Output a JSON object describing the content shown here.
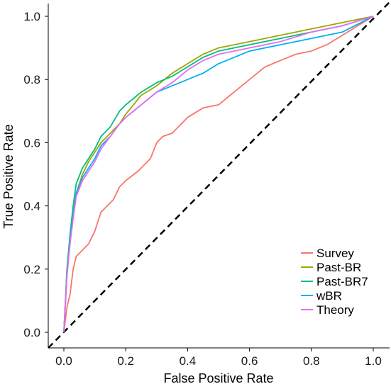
{
  "chart_data": {
    "type": "line",
    "xlabel": "False Positive Rate",
    "ylabel": "True Positive Rate",
    "xlim": [
      0,
      1
    ],
    "ylim": [
      0,
      1
    ],
    "x_ticks": [
      "0.0",
      "0.2",
      "0.4",
      "0.6",
      "0.8",
      "1.0"
    ],
    "y_ticks": [
      "0.0",
      "0.2",
      "0.4",
      "0.6",
      "0.8",
      "1.0"
    ],
    "grid": false,
    "legend_position": "bottom-right",
    "reference_line": {
      "style": "dashed",
      "color": "#000000",
      "from": [
        0,
        0
      ],
      "to": [
        1,
        1
      ]
    },
    "series": [
      {
        "name": "Survey",
        "color": "#F8766D",
        "points": [
          [
            0,
            0
          ],
          [
            0.01,
            0.08
          ],
          [
            0.02,
            0.12
          ],
          [
            0.03,
            0.2
          ],
          [
            0.04,
            0.24
          ],
          [
            0.06,
            0.26
          ],
          [
            0.08,
            0.28
          ],
          [
            0.1,
            0.32
          ],
          [
            0.12,
            0.38
          ],
          [
            0.14,
            0.4
          ],
          [
            0.16,
            0.42
          ],
          [
            0.18,
            0.46
          ],
          [
            0.2,
            0.48
          ],
          [
            0.24,
            0.51
          ],
          [
            0.28,
            0.55
          ],
          [
            0.3,
            0.6
          ],
          [
            0.32,
            0.62
          ],
          [
            0.35,
            0.63
          ],
          [
            0.38,
            0.66
          ],
          [
            0.4,
            0.68
          ],
          [
            0.45,
            0.71
          ],
          [
            0.5,
            0.72
          ],
          [
            0.55,
            0.76
          ],
          [
            0.6,
            0.8
          ],
          [
            0.65,
            0.84
          ],
          [
            0.7,
            0.86
          ],
          [
            0.75,
            0.88
          ],
          [
            0.8,
            0.89
          ],
          [
            0.85,
            0.91
          ],
          [
            0.9,
            0.94
          ],
          [
            0.95,
            0.97
          ],
          [
            1,
            1
          ]
        ]
      },
      {
        "name": "Past-BR",
        "color": "#A3A500",
        "points": [
          [
            0,
            0
          ],
          [
            0.01,
            0.2
          ],
          [
            0.02,
            0.3
          ],
          [
            0.03,
            0.38
          ],
          [
            0.04,
            0.44
          ],
          [
            0.06,
            0.5
          ],
          [
            0.08,
            0.54
          ],
          [
            0.1,
            0.57
          ],
          [
            0.12,
            0.6
          ],
          [
            0.15,
            0.63
          ],
          [
            0.18,
            0.66
          ],
          [
            0.2,
            0.69
          ],
          [
            0.25,
            0.75
          ],
          [
            0.3,
            0.78
          ],
          [
            0.35,
            0.82
          ],
          [
            0.4,
            0.85
          ],
          [
            0.45,
            0.88
          ],
          [
            0.5,
            0.9
          ],
          [
            0.6,
            0.92
          ],
          [
            0.7,
            0.94
          ],
          [
            0.8,
            0.96
          ],
          [
            0.9,
            0.98
          ],
          [
            1,
            1
          ]
        ]
      },
      {
        "name": "Past-BR7",
        "color": "#00BF7D",
        "points": [
          [
            0,
            0
          ],
          [
            0.01,
            0.2
          ],
          [
            0.02,
            0.31
          ],
          [
            0.03,
            0.4
          ],
          [
            0.04,
            0.47
          ],
          [
            0.06,
            0.52
          ],
          [
            0.08,
            0.55
          ],
          [
            0.1,
            0.58
          ],
          [
            0.12,
            0.62
          ],
          [
            0.15,
            0.65
          ],
          [
            0.18,
            0.7
          ],
          [
            0.2,
            0.72
          ],
          [
            0.25,
            0.76
          ],
          [
            0.3,
            0.79
          ],
          [
            0.35,
            0.81
          ],
          [
            0.4,
            0.84
          ],
          [
            0.45,
            0.87
          ],
          [
            0.5,
            0.89
          ],
          [
            0.6,
            0.91
          ],
          [
            0.7,
            0.93
          ],
          [
            0.8,
            0.95
          ],
          [
            0.9,
            0.97
          ],
          [
            1,
            1
          ]
        ]
      },
      {
        "name": "wBR",
        "color": "#00B0F6",
        "points": [
          [
            0,
            0
          ],
          [
            0.01,
            0.18
          ],
          [
            0.02,
            0.29
          ],
          [
            0.03,
            0.37
          ],
          [
            0.04,
            0.44
          ],
          [
            0.06,
            0.49
          ],
          [
            0.08,
            0.52
          ],
          [
            0.1,
            0.55
          ],
          [
            0.12,
            0.59
          ],
          [
            0.15,
            0.62
          ],
          [
            0.18,
            0.66
          ],
          [
            0.2,
            0.68
          ],
          [
            0.25,
            0.72
          ],
          [
            0.3,
            0.76
          ],
          [
            0.35,
            0.78
          ],
          [
            0.4,
            0.8
          ],
          [
            0.45,
            0.82
          ],
          [
            0.5,
            0.85
          ],
          [
            0.6,
            0.89
          ],
          [
            0.7,
            0.91
          ],
          [
            0.8,
            0.93
          ],
          [
            0.9,
            0.95
          ],
          [
            1,
            1
          ]
        ]
      },
      {
        "name": "Theory",
        "color": "#E76BF3",
        "points": [
          [
            0,
            0
          ],
          [
            0.01,
            0.18
          ],
          [
            0.02,
            0.28
          ],
          [
            0.03,
            0.36
          ],
          [
            0.04,
            0.43
          ],
          [
            0.06,
            0.48
          ],
          [
            0.08,
            0.51
          ],
          [
            0.1,
            0.54
          ],
          [
            0.12,
            0.58
          ],
          [
            0.15,
            0.62
          ],
          [
            0.18,
            0.66
          ],
          [
            0.2,
            0.68
          ],
          [
            0.25,
            0.72
          ],
          [
            0.3,
            0.76
          ],
          [
            0.35,
            0.79
          ],
          [
            0.4,
            0.83
          ],
          [
            0.45,
            0.86
          ],
          [
            0.5,
            0.88
          ],
          [
            0.6,
            0.9
          ],
          [
            0.7,
            0.92
          ],
          [
            0.8,
            0.95
          ],
          [
            0.9,
            0.97
          ],
          [
            1,
            1
          ]
        ]
      }
    ]
  }
}
